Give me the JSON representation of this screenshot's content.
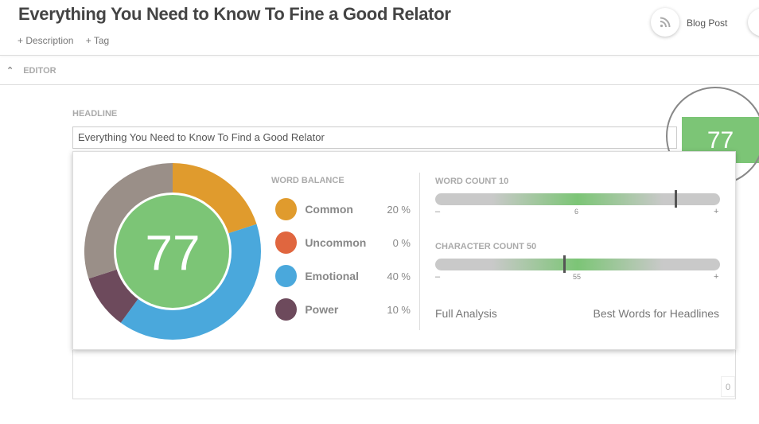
{
  "page": {
    "title": "Everything You Need to Know To Fine a Good Relator",
    "links": [
      "+ Description",
      "+ Tag"
    ],
    "type_label": "Blog Post",
    "type_icon": "rss-icon"
  },
  "editor": {
    "section_label": "EDITOR",
    "headline_label": "HEADLINE",
    "headline_value": "Everything You Need to Know To Find a Good Relator",
    "score": "77",
    "char_counter": "0"
  },
  "analysis": {
    "score": "77",
    "word_balance_title": "WORD BALANCE",
    "word_balance": [
      {
        "name": "Common",
        "pct": "20 %",
        "value": 20,
        "color": "#e09b2d"
      },
      {
        "name": "Uncommon",
        "pct": "0 %",
        "value": 0,
        "color": "#e0663f"
      },
      {
        "name": "Emotional",
        "pct": "40 %",
        "value": 40,
        "color": "#4aa8dc"
      },
      {
        "name": "Power",
        "pct": "10 %",
        "value": 10,
        "color": "#6d4a5c"
      }
    ],
    "remainder_color": "#9a8f88",
    "score_color": "#7cc576",
    "word_count": {
      "label": "WORD COUNT 10",
      "ideal": "6",
      "marker_fraction": 0.84,
      "ideal_fraction": 0.5
    },
    "char_count": {
      "label": "CHARACTER COUNT 50",
      "ideal": "55",
      "marker_fraction": 0.45,
      "ideal_fraction": 0.5
    },
    "minus": "–",
    "plus": "+",
    "full_analysis": "Full Analysis",
    "best_words": "Best Words for Headlines"
  }
}
